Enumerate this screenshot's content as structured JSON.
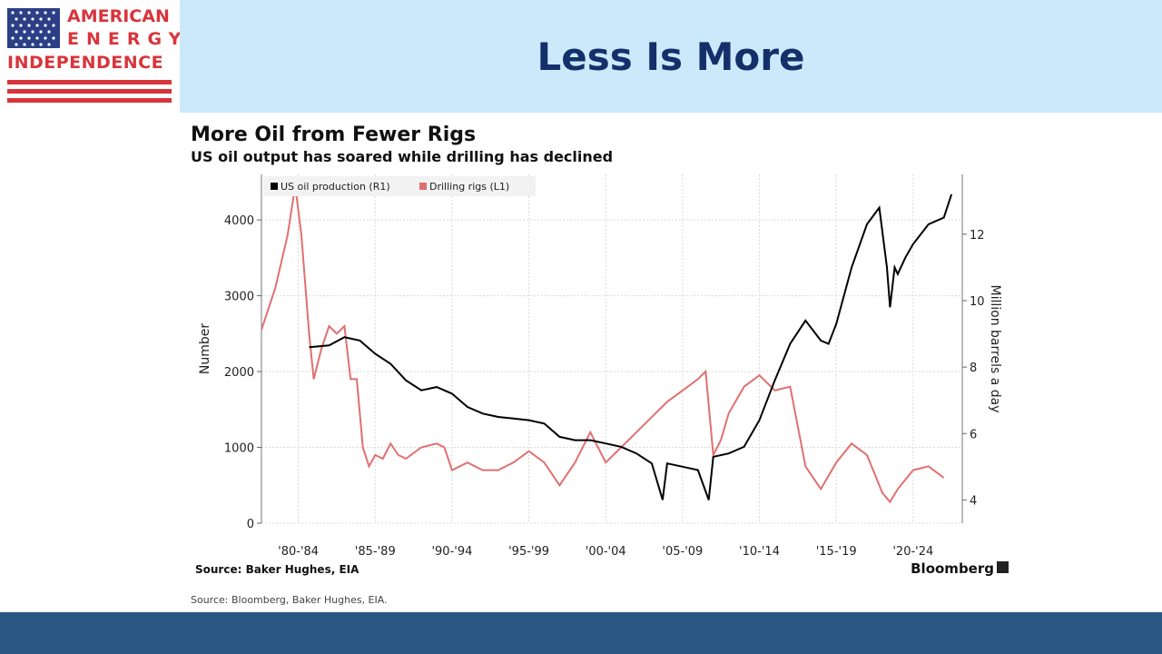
{
  "logo": {
    "line1": "AMERICAN",
    "line2": "ENERGY",
    "line3": "INDEPENDENCE"
  },
  "slide_title": "Less Is More",
  "chart_data": {
    "type": "line",
    "title": "More Oil from Fewer Rigs",
    "subtitle": "US oil output has soared while drilling has declined",
    "xlabel": "",
    "ylabel_left": "Number",
    "ylabel_right": "Million barrels a day",
    "ylim_left": [
      0,
      4600
    ],
    "ylim_right": [
      3.3,
      13.8
    ],
    "xlim": [
      1979.6,
      2025.2
    ],
    "left_ticks": [
      0,
      1000,
      2000,
      3000,
      4000
    ],
    "right_ticks": [
      4,
      6,
      8,
      10,
      12
    ],
    "x_tick_labels": [
      {
        "label": "'80-'84",
        "x": 1982
      },
      {
        "label": "'85-'89",
        "x": 1987
      },
      {
        "label": "'90-'94",
        "x": 1992
      },
      {
        "label": "'95-'99",
        "x": 1997
      },
      {
        "label": "'00-'04",
        "x": 2002
      },
      {
        "label": "'05-'09",
        "x": 2007
      },
      {
        "label": "'10-'14",
        "x": 2012
      },
      {
        "label": "'15-'19",
        "x": 2017
      },
      {
        "label": "'20-'24",
        "x": 2022
      }
    ],
    "grid": true,
    "legend_position": "top-left",
    "series": [
      {
        "name": "US oil production (R1)",
        "axis": "right",
        "color": "#000000",
        "points": [
          [
            1982.7,
            8.6
          ],
          [
            1984,
            8.65
          ],
          [
            1985,
            8.9
          ],
          [
            1986,
            8.8
          ],
          [
            1987,
            8.4
          ],
          [
            1988,
            8.1
          ],
          [
            1989,
            7.6
          ],
          [
            1990,
            7.3
          ],
          [
            1991,
            7.4
          ],
          [
            1992,
            7.2
          ],
          [
            1993,
            6.8
          ],
          [
            1994,
            6.6
          ],
          [
            1995,
            6.5
          ],
          [
            1996,
            6.45
          ],
          [
            1997,
            6.4
          ],
          [
            1998,
            6.3
          ],
          [
            1999,
            5.9
          ],
          [
            2000,
            5.8
          ],
          [
            2001,
            5.8
          ],
          [
            2002,
            5.7
          ],
          [
            2003,
            5.6
          ],
          [
            2004,
            5.4
          ],
          [
            2005,
            5.1
          ],
          [
            2005.7,
            4.0
          ],
          [
            2006,
            5.1
          ],
          [
            2007,
            5.0
          ],
          [
            2008,
            4.9
          ],
          [
            2008.7,
            4.0
          ],
          [
            2009,
            5.3
          ],
          [
            2010,
            5.4
          ],
          [
            2011,
            5.6
          ],
          [
            2012,
            6.4
          ],
          [
            2013,
            7.6
          ],
          [
            2014,
            8.7
          ],
          [
            2015,
            9.4
          ],
          [
            2016,
            8.8
          ],
          [
            2016.5,
            8.7
          ],
          [
            2017,
            9.3
          ],
          [
            2018,
            11.0
          ],
          [
            2019,
            12.3
          ],
          [
            2019.8,
            12.8
          ],
          [
            2020.3,
            11.0
          ],
          [
            2020.5,
            9.8
          ],
          [
            2020.8,
            11.0
          ],
          [
            2021,
            10.8
          ],
          [
            2021.5,
            11.3
          ],
          [
            2022,
            11.7
          ],
          [
            2023,
            12.3
          ],
          [
            2024,
            12.5
          ],
          [
            2024.5,
            13.2
          ]
        ]
      },
      {
        "name": "Drilling rigs (L1)",
        "axis": "left",
        "color": "#e07070",
        "points": [
          [
            1979.6,
            2550
          ],
          [
            1980.5,
            3100
          ],
          [
            1981.3,
            3800
          ],
          [
            1981.8,
            4450
          ],
          [
            1982.2,
            3800
          ],
          [
            1982.7,
            2500
          ],
          [
            1983,
            1900
          ],
          [
            1983.5,
            2300
          ],
          [
            1984,
            2600
          ],
          [
            1984.5,
            2500
          ],
          [
            1985,
            2600
          ],
          [
            1985.4,
            1900
          ],
          [
            1985.8,
            1900
          ],
          [
            1986.2,
            1000
          ],
          [
            1986.6,
            750
          ],
          [
            1987,
            900
          ],
          [
            1987.5,
            850
          ],
          [
            1988,
            1050
          ],
          [
            1988.5,
            900
          ],
          [
            1989,
            850
          ],
          [
            1990,
            1000
          ],
          [
            1991,
            1050
          ],
          [
            1991.5,
            1000
          ],
          [
            1992,
            700
          ],
          [
            1993,
            800
          ],
          [
            1994,
            700
          ],
          [
            1995,
            700
          ],
          [
            1996,
            800
          ],
          [
            1997,
            950
          ],
          [
            1998,
            800
          ],
          [
            1999,
            500
          ],
          [
            2000,
            800
          ],
          [
            2001,
            1200
          ],
          [
            2002,
            800
          ],
          [
            2003,
            1000
          ],
          [
            2004,
            1200
          ],
          [
            2005,
            1400
          ],
          [
            2006,
            1600
          ],
          [
            2007,
            1750
          ],
          [
            2008,
            1900
          ],
          [
            2008.5,
            2000
          ],
          [
            2009,
            900
          ],
          [
            2009.5,
            1100
          ],
          [
            2010,
            1450
          ],
          [
            2011,
            1800
          ],
          [
            2012,
            1950
          ],
          [
            2013,
            1750
          ],
          [
            2014,
            1800
          ],
          [
            2015,
            750
          ],
          [
            2016,
            450
          ],
          [
            2017,
            800
          ],
          [
            2018,
            1050
          ],
          [
            2019,
            900
          ],
          [
            2020,
            400
          ],
          [
            2020.5,
            280
          ],
          [
            2021,
            450
          ],
          [
            2022,
            700
          ],
          [
            2023,
            750
          ],
          [
            2024,
            600
          ]
        ]
      }
    ],
    "source_inner": "Source: Baker Hughes, EIA",
    "branding": "Bloomberg",
    "source_outer": "Source: Bloomberg, Baker Hughes, EIA."
  }
}
